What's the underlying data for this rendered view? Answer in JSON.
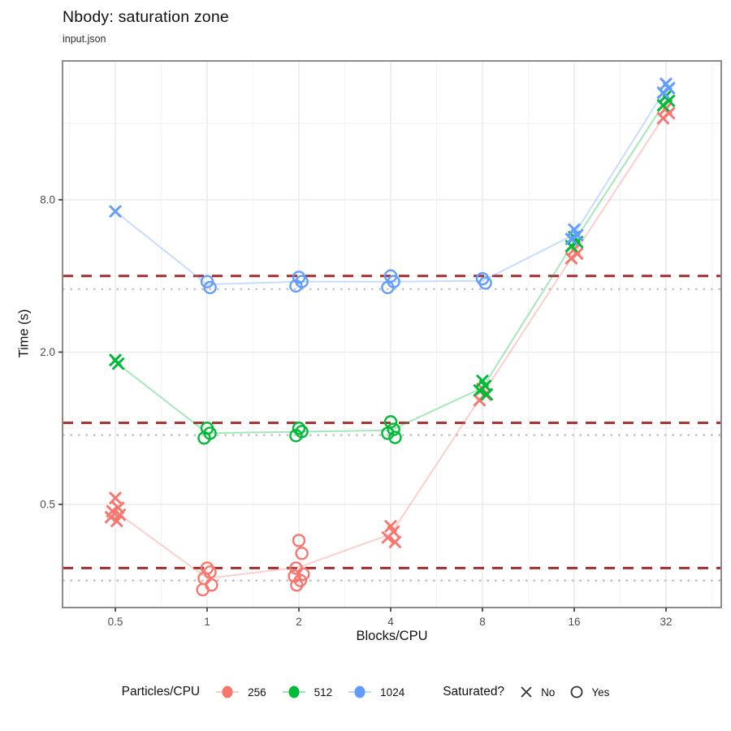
{
  "header": {
    "title": "Nbody: saturation zone",
    "subtitle": "input.json"
  },
  "axes": {
    "x_label": "Blocks/CPU",
    "y_label": "Time (s)",
    "x_tick_labels": [
      "0.5",
      "1",
      "2",
      "4",
      "8",
      "16",
      "32"
    ],
    "y_tick_labels": [
      "8.0",
      "2.0",
      "0.5"
    ]
  },
  "legend": {
    "color_title": "Particles/CPU",
    "color_items": [
      {
        "label": "256",
        "color": "#F8766D"
      },
      {
        "label": "512",
        "color": "#00BA38"
      },
      {
        "label": "1024",
        "color": "#619CFF"
      }
    ],
    "shape_title": "Saturated?",
    "shape_items": [
      {
        "label": "No",
        "shape": "x"
      },
      {
        "label": "Yes",
        "shape": "o"
      }
    ]
  },
  "chart_data": {
    "type": "scatter",
    "title": "Nbody: saturation zone",
    "subtitle": "input.json",
    "xlabel": "Blocks/CPU",
    "ylabel": "Time (s)",
    "x_scale": "log2",
    "y_scale": "log2",
    "x_ticks": [
      0.5,
      1,
      2,
      4,
      8,
      16,
      32
    ],
    "y_ticks": [
      8.0,
      2.0,
      0.5
    ],
    "y_minor_gridlines": [
      16,
      4,
      1,
      0.25
    ],
    "xlim": [
      0.335,
      48.5
    ],
    "ylim": [
      0.196,
      28.3
    ],
    "grid": true,
    "legend_position": "bottom",
    "hlines": [
      {
        "style": "dashed",
        "color": "#A12F2F",
        "values": [
          4.0,
          1.05,
          0.28
        ]
      },
      {
        "style": "dotted",
        "color": "#C2C2C2",
        "values": [
          3.55,
          0.94,
          0.25
        ]
      }
    ],
    "series": [
      {
        "name": "256",
        "color": "#F8766D",
        "points": [
          {
            "x": 0.5,
            "saturated": false,
            "values": [
              0.53,
              0.485,
              0.47,
              0.455,
              0.445,
              0.43
            ]
          },
          {
            "x": 1,
            "saturated": true,
            "values": [
              0.28,
              0.27,
              0.255,
              0.24,
              0.23
            ]
          },
          {
            "x": 2,
            "saturated": true,
            "values": [
              0.36,
              0.32,
              0.28,
              0.265,
              0.26,
              0.25,
              0.24
            ]
          },
          {
            "x": 4,
            "saturated": false,
            "values": [
              0.41,
              0.39,
              0.37,
              0.355
            ]
          },
          {
            "x": 8,
            "saturated": false,
            "values": [
              1.43,
              1.36,
              1.29
            ]
          },
          {
            "x": 16,
            "saturated": false,
            "values": [
              5.1,
              4.9,
              4.7
            ]
          },
          {
            "x": 32,
            "saturated": false,
            "values": [
              18.4,
              17.6,
              16.8
            ]
          }
        ]
      },
      {
        "name": "512",
        "color": "#00BA38",
        "points": [
          {
            "x": 0.5,
            "saturated": false,
            "values": [
              1.86,
              1.8
            ]
          },
          {
            "x": 1,
            "saturated": true,
            "values": [
              1.0,
              0.955,
              0.915
            ]
          },
          {
            "x": 2,
            "saturated": true,
            "values": [
              1.0,
              0.97,
              0.935
            ]
          },
          {
            "x": 4,
            "saturated": true,
            "values": [
              1.06,
              0.99,
              0.955,
              0.92
            ]
          },
          {
            "x": 8,
            "saturated": false,
            "values": [
              1.54,
              1.47,
              1.41,
              1.36
            ]
          },
          {
            "x": 16,
            "saturated": false,
            "values": [
              5.7,
              5.45,
              5.25
            ]
          },
          {
            "x": 32,
            "saturated": false,
            "values": [
              20.6,
              19.7,
              18.9
            ]
          }
        ]
      },
      {
        "name": "1024",
        "color": "#619CFF",
        "points": [
          {
            "x": 0.5,
            "saturated": false,
            "values": [
              7.2
            ]
          },
          {
            "x": 1,
            "saturated": true,
            "values": [
              3.8,
              3.6
            ]
          },
          {
            "x": 2,
            "saturated": true,
            "values": [
              3.95,
              3.8,
              3.65
            ]
          },
          {
            "x": 4,
            "saturated": true,
            "values": [
              4.0,
              3.8,
              3.6
            ]
          },
          {
            "x": 8,
            "saturated": true,
            "values": [
              3.9,
              3.75
            ]
          },
          {
            "x": 16,
            "saturated": false,
            "values": [
              6.1,
              5.8,
              5.6
            ]
          },
          {
            "x": 32,
            "saturated": false,
            "values": [
              23.0,
              22.1,
              21.2
            ]
          }
        ]
      }
    ]
  },
  "colors": {
    "panel_border": "#8C8C8C",
    "grid_major": "#EBEBEB",
    "grid_minor": "#F5F5F5",
    "tick_text": "#4D4D4D",
    "tick_mark": "#333333",
    "shape_key": "#333333"
  }
}
